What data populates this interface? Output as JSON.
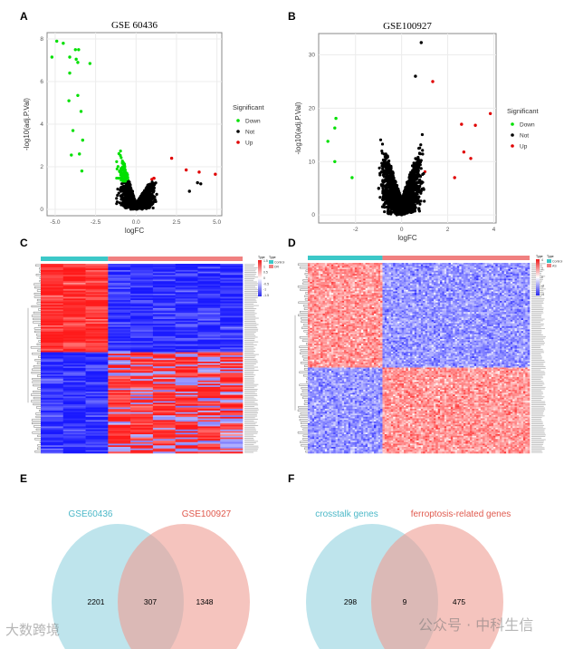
{
  "panels": {
    "A": "A",
    "B": "B",
    "C": "C",
    "D": "D",
    "E": "E",
    "F": "F"
  },
  "watermarks": {
    "left": "大数跨境",
    "right": "公众号 · 中科生信"
  },
  "chart_data": [
    {
      "id": "A",
      "type": "scatter",
      "title": "GSE 60436",
      "xlabel": "logFC",
      "ylabel": "-log10(adj.P.Val)",
      "xlim": [
        -5.5,
        5.3
      ],
      "ylim": [
        -0.3,
        8.3
      ],
      "xticks": [
        -5,
        -2.5,
        0,
        2.5,
        5
      ],
      "xtick_labels": [
        "-5.0",
        "-2.5",
        "0.0",
        "2.5",
        "5.0"
      ],
      "yticks": [
        0,
        2,
        4,
        6,
        8
      ],
      "grid": true,
      "legend": {
        "title": "Significant",
        "position": "right",
        "entries": [
          {
            "label": "Down",
            "color": "#00e000"
          },
          {
            "label": "Not",
            "color": "#000000"
          },
          {
            "label": "Up",
            "color": "#e00000"
          }
        ]
      },
      "thresholds": {
        "logFC": 0.5,
        "padj_log": 1.3
      },
      "highlight_points": [
        [
          -5.2,
          7.15
        ],
        [
          -4.9,
          7.9
        ],
        [
          -4.5,
          7.8
        ],
        [
          -4.1,
          7.15
        ],
        [
          -4.1,
          6.4
        ],
        [
          -3.75,
          7.5
        ],
        [
          -3.55,
          7.5
        ],
        [
          -3.7,
          7.05
        ],
        [
          -3.6,
          6.9
        ],
        [
          -4.15,
          5.1
        ],
        [
          -3.6,
          5.35
        ],
        [
          -3.9,
          3.7
        ],
        [
          -3.4,
          4.6
        ],
        [
          -3.3,
          3.25
        ],
        [
          -3.5,
          2.6
        ],
        [
          -4.0,
          2.55
        ],
        [
          -3.35,
          1.8
        ],
        [
          -2.85,
          6.85
        ],
        [
          2.2,
          2.4
        ],
        [
          3.1,
          1.85
        ],
        [
          3.9,
          1.75
        ],
        [
          4.9,
          1.65
        ],
        [
          3.8,
          1.25
        ],
        [
          4.0,
          1.2
        ],
        [
          3.3,
          0.85
        ]
      ]
    },
    {
      "id": "B",
      "type": "scatter",
      "title": "GSE100927",
      "xlabel": "logFC",
      "ylabel": "-log10(adj.P.Val)",
      "xlim": [
        -3.6,
        4.1
      ],
      "ylim": [
        -1.5,
        34
      ],
      "xticks": [
        -2,
        0,
        2,
        4
      ],
      "yticks": [
        0,
        10,
        20,
        30
      ],
      "grid": true,
      "legend": {
        "title": "Significant",
        "position": "right",
        "entries": [
          {
            "label": "Down",
            "color": "#00e000"
          },
          {
            "label": "Not",
            "color": "#000000"
          },
          {
            "label": "Up",
            "color": "#e00000"
          }
        ]
      },
      "thresholds": {
        "logFC": 1.0,
        "padj_log": 1.3
      },
      "highlight_points": [
        [
          0.85,
          32.3
        ],
        [
          -3.2,
          13.8
        ],
        [
          -2.9,
          16.3
        ],
        [
          -2.85,
          18.1
        ],
        [
          -2.9,
          10.0
        ],
        [
          -2.15,
          7.0
        ],
        [
          3.85,
          19.0
        ],
        [
          3.2,
          16.8
        ],
        [
          3.0,
          10.6
        ],
        [
          2.7,
          11.8
        ],
        [
          2.3,
          7.0
        ],
        [
          2.6,
          17.0
        ],
        [
          0.6,
          26.0
        ],
        [
          1.35,
          25.0
        ]
      ]
    },
    {
      "id": "C",
      "type": "heatmap",
      "groups": [
        {
          "label": "Control",
          "color": "#3cc8c8",
          "n": 3
        },
        {
          "label": "DR",
          "color": "#f08080",
          "n": 6
        }
      ],
      "legend_title": "Type",
      "colorbar_ticks": [
        "1.5",
        "1",
        "0.5",
        "0",
        "-0.5",
        "-1",
        "-1.5"
      ],
      "rows": 120
    },
    {
      "id": "D",
      "type": "heatmap",
      "groups": [
        {
          "label": "Control",
          "color": "#3cc8c8",
          "n": 35
        },
        {
          "label": "AS",
          "color": "#f08080",
          "n": 69
        }
      ],
      "legend_title": "Type",
      "colorbar_ticks": [
        "4",
        "2",
        "0",
        "-2",
        "-4"
      ],
      "rows": 120
    },
    {
      "id": "E",
      "type": "venn",
      "sets": [
        {
          "label": "GSE60436",
          "color": "#4cb8c8",
          "only": 2201
        },
        {
          "label": "GSE100927",
          "color": "#e05a4e",
          "only": 1348
        }
      ],
      "intersection": 307
    },
    {
      "id": "F",
      "type": "venn",
      "sets": [
        {
          "label": "crosstalk genes",
          "color": "#4cb8c8",
          "only": 298
        },
        {
          "label": "ferroptosis-related genes",
          "color": "#e05a4e",
          "only": 475
        }
      ],
      "intersection": 9
    }
  ]
}
